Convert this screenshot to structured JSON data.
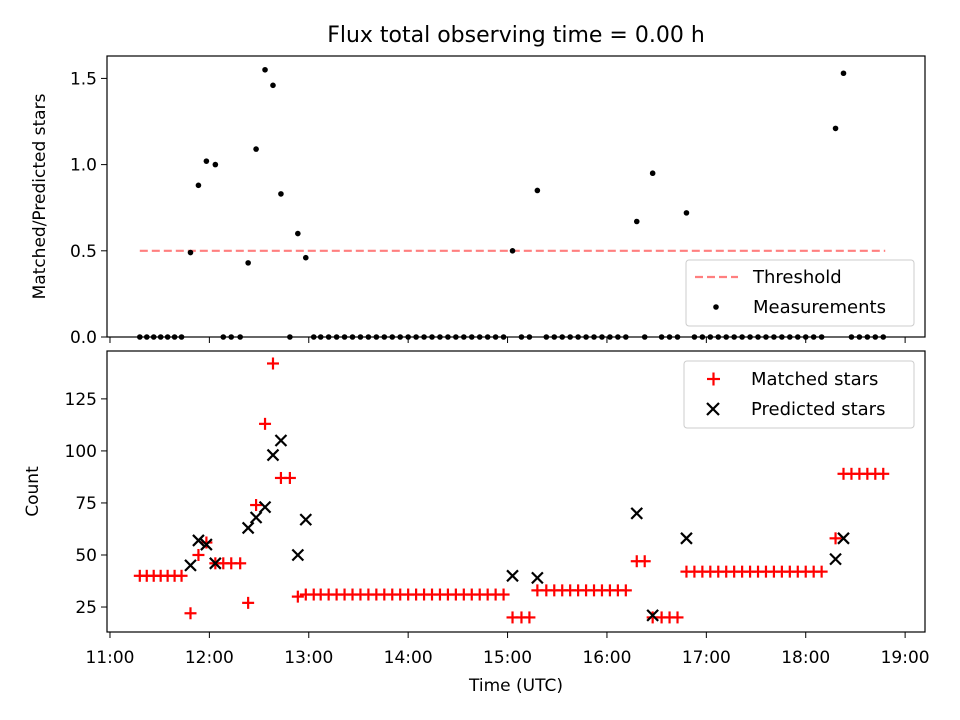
{
  "figure": {
    "title": "Flux total observing time = 0.00 h",
    "xlabel": "Time (UTC)",
    "x_ticks": [
      "11:00",
      "12:00",
      "13:00",
      "14:00",
      "15:00",
      "16:00",
      "17:00",
      "18:00",
      "19:00"
    ]
  },
  "chart_data": [
    {
      "type": "scatter",
      "ylabel": "Matched/Predicted stars",
      "xlim": [
        10.97,
        19.2
      ],
      "ylim": [
        0,
        1.63
      ],
      "y_ticks": [
        "0.0",
        "0.5",
        "1.0",
        "1.5"
      ],
      "y_tick_values": [
        0,
        0.5,
        1.0,
        1.5
      ],
      "legend": {
        "placement": "bottom-right",
        "entries": [
          "Threshold",
          "Measurements"
        ]
      },
      "threshold": {
        "name": "Threshold",
        "y": 0.5,
        "x_range": [
          11.3,
          18.8
        ],
        "color": "#ff7f7f",
        "style": "dashed"
      },
      "series": [
        {
          "name": "Measurements",
          "color": "#000000",
          "points": [
            [
              11.3,
              0
            ],
            [
              11.37,
              0
            ],
            [
              11.44,
              0
            ],
            [
              11.51,
              0
            ],
            [
              11.58,
              0
            ],
            [
              11.65,
              0
            ],
            [
              11.72,
              0
            ],
            [
              11.81,
              0.49
            ],
            [
              11.89,
              0.88
            ],
            [
              11.97,
              1.02
            ],
            [
              12.06,
              1.0
            ],
            [
              12.14,
              0
            ],
            [
              12.22,
              0
            ],
            [
              12.31,
              0
            ],
            [
              12.39,
              0.43
            ],
            [
              12.47,
              1.09
            ],
            [
              12.56,
              1.55
            ],
            [
              12.64,
              1.46
            ],
            [
              12.72,
              0.83
            ],
            [
              12.81,
              0
            ],
            [
              12.89,
              0.6
            ],
            [
              12.97,
              0.46
            ],
            [
              13.05,
              0
            ],
            [
              13.12,
              0
            ],
            [
              13.2,
              0
            ],
            [
              13.28,
              0
            ],
            [
              13.36,
              0
            ],
            [
              13.44,
              0
            ],
            [
              13.52,
              0
            ],
            [
              13.6,
              0
            ],
            [
              13.68,
              0
            ],
            [
              13.76,
              0
            ],
            [
              13.84,
              0
            ],
            [
              13.92,
              0
            ],
            [
              14.0,
              0
            ],
            [
              14.08,
              0
            ],
            [
              14.16,
              0
            ],
            [
              14.24,
              0
            ],
            [
              14.32,
              0
            ],
            [
              14.4,
              0
            ],
            [
              14.48,
              0
            ],
            [
              14.56,
              0
            ],
            [
              14.64,
              0
            ],
            [
              14.72,
              0
            ],
            [
              14.8,
              0
            ],
            [
              14.88,
              0
            ],
            [
              14.96,
              0
            ],
            [
              15.05,
              0.5
            ],
            [
              15.14,
              0
            ],
            [
              15.22,
              0
            ],
            [
              15.3,
              0.85
            ],
            [
              15.39,
              0
            ],
            [
              15.47,
              0
            ],
            [
              15.55,
              0
            ],
            [
              15.63,
              0
            ],
            [
              15.71,
              0
            ],
            [
              15.79,
              0
            ],
            [
              15.87,
              0
            ],
            [
              15.95,
              0
            ],
            [
              16.03,
              0
            ],
            [
              16.11,
              0
            ],
            [
              16.19,
              0
            ],
            [
              16.3,
              0.67
            ],
            [
              16.38,
              0
            ],
            [
              16.46,
              0.95
            ],
            [
              16.55,
              0
            ],
            [
              16.63,
              0
            ],
            [
              16.71,
              0
            ],
            [
              16.8,
              0.72
            ],
            [
              16.88,
              0
            ],
            [
              16.96,
              0
            ],
            [
              17.04,
              0
            ],
            [
              17.12,
              0
            ],
            [
              17.2,
              0
            ],
            [
              17.28,
              0
            ],
            [
              17.36,
              0
            ],
            [
              17.44,
              0
            ],
            [
              17.52,
              0
            ],
            [
              17.6,
              0
            ],
            [
              17.68,
              0
            ],
            [
              17.76,
              0
            ],
            [
              17.84,
              0
            ],
            [
              17.92,
              0
            ],
            [
              18.0,
              0
            ],
            [
              18.08,
              0
            ],
            [
              18.16,
              0
            ],
            [
              18.3,
              1.21
            ],
            [
              18.38,
              1.53
            ],
            [
              18.46,
              0
            ],
            [
              18.54,
              0
            ],
            [
              18.62,
              0
            ],
            [
              18.7,
              0
            ],
            [
              18.78,
              0
            ]
          ]
        }
      ]
    },
    {
      "type": "scatter",
      "ylabel": "Count",
      "xlim": [
        10.97,
        19.2
      ],
      "ylim": [
        13,
        148
      ],
      "y_ticks": [
        "25",
        "50",
        "75",
        "100",
        "125"
      ],
      "y_tick_values": [
        25,
        50,
        75,
        100,
        125
      ],
      "legend": {
        "placement": "top-right",
        "entries": [
          "Matched stars",
          "Predicted stars"
        ]
      },
      "series": [
        {
          "name": "Matched stars",
          "marker": "plus",
          "color": "#ff0000",
          "points": [
            [
              11.3,
              40
            ],
            [
              11.37,
              40
            ],
            [
              11.44,
              40
            ],
            [
              11.51,
              40
            ],
            [
              11.58,
              40
            ],
            [
              11.65,
              40
            ],
            [
              11.72,
              40
            ],
            [
              11.81,
              22
            ],
            [
              11.89,
              50
            ],
            [
              11.97,
              56
            ],
            [
              12.06,
              46
            ],
            [
              12.14,
              46
            ],
            [
              12.22,
              46
            ],
            [
              12.31,
              46
            ],
            [
              12.39,
              27
            ],
            [
              12.47,
              74
            ],
            [
              12.56,
              113
            ],
            [
              12.64,
              142
            ],
            [
              12.72,
              87
            ],
            [
              12.81,
              87
            ],
            [
              12.89,
              30
            ],
            [
              12.97,
              31
            ],
            [
              13.05,
              31
            ],
            [
              13.12,
              31
            ],
            [
              13.2,
              31
            ],
            [
              13.28,
              31
            ],
            [
              13.36,
              31
            ],
            [
              13.44,
              31
            ],
            [
              13.52,
              31
            ],
            [
              13.6,
              31
            ],
            [
              13.68,
              31
            ],
            [
              13.76,
              31
            ],
            [
              13.84,
              31
            ],
            [
              13.92,
              31
            ],
            [
              14.0,
              31
            ],
            [
              14.08,
              31
            ],
            [
              14.16,
              31
            ],
            [
              14.24,
              31
            ],
            [
              14.32,
              31
            ],
            [
              14.4,
              31
            ],
            [
              14.48,
              31
            ],
            [
              14.56,
              31
            ],
            [
              14.64,
              31
            ],
            [
              14.72,
              31
            ],
            [
              14.8,
              31
            ],
            [
              14.88,
              31
            ],
            [
              14.96,
              31
            ],
            [
              15.05,
              20
            ],
            [
              15.14,
              20
            ],
            [
              15.22,
              20
            ],
            [
              15.3,
              33
            ],
            [
              15.39,
              33
            ],
            [
              15.47,
              33
            ],
            [
              15.55,
              33
            ],
            [
              15.63,
              33
            ],
            [
              15.71,
              33
            ],
            [
              15.79,
              33
            ],
            [
              15.87,
              33
            ],
            [
              15.95,
              33
            ],
            [
              16.03,
              33
            ],
            [
              16.11,
              33
            ],
            [
              16.19,
              33
            ],
            [
              16.3,
              47
            ],
            [
              16.38,
              47
            ],
            [
              16.46,
              20
            ],
            [
              16.55,
              20
            ],
            [
              16.63,
              20
            ],
            [
              16.71,
              20
            ],
            [
              16.8,
              42
            ],
            [
              16.88,
              42
            ],
            [
              16.96,
              42
            ],
            [
              17.04,
              42
            ],
            [
              17.12,
              42
            ],
            [
              17.2,
              42
            ],
            [
              17.28,
              42
            ],
            [
              17.36,
              42
            ],
            [
              17.44,
              42
            ],
            [
              17.52,
              42
            ],
            [
              17.6,
              42
            ],
            [
              17.68,
              42
            ],
            [
              17.76,
              42
            ],
            [
              17.84,
              42
            ],
            [
              17.92,
              42
            ],
            [
              18.0,
              42
            ],
            [
              18.08,
              42
            ],
            [
              18.16,
              42
            ],
            [
              18.3,
              58
            ],
            [
              18.38,
              89
            ],
            [
              18.46,
              89
            ],
            [
              18.54,
              89
            ],
            [
              18.62,
              89
            ],
            [
              18.7,
              89
            ],
            [
              18.78,
              89
            ]
          ]
        },
        {
          "name": "Predicted stars",
          "marker": "x",
          "color": "#000000",
          "points": [
            [
              11.81,
              45
            ],
            [
              11.89,
              57
            ],
            [
              11.97,
              55
            ],
            [
              12.06,
              46
            ],
            [
              12.39,
              63
            ],
            [
              12.47,
              68
            ],
            [
              12.56,
              73
            ],
            [
              12.64,
              98
            ],
            [
              12.72,
              105
            ],
            [
              12.89,
              50
            ],
            [
              12.97,
              67
            ],
            [
              15.05,
              40
            ],
            [
              15.3,
              39
            ],
            [
              16.3,
              70
            ],
            [
              16.46,
              21
            ],
            [
              16.8,
              58
            ],
            [
              18.3,
              48
            ],
            [
              18.38,
              58
            ]
          ]
        }
      ]
    }
  ]
}
